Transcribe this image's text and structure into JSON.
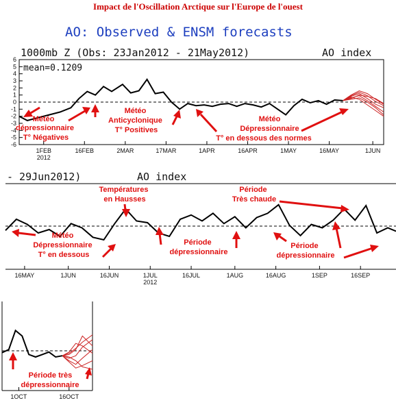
{
  "page": {
    "title": "Impact de l'Oscillation Arctique sur l'Europe de l'ouest"
  },
  "colors": {
    "observed": "#000000",
    "forecast": "#cc2222",
    "annotation": "#e01010",
    "heading_blue": "#1d3fbf"
  },
  "chart_data": [
    {
      "type": "line",
      "panel": "top",
      "title": "AO: Observed & ENSM forecasts",
      "subtitle": "1000mb Z (Obs: 23Jan2012 - 21May2012)",
      "right_label": "AO index",
      "mean_label": "mean=0.1209",
      "ylim": [
        -6,
        6
      ],
      "yticks": [
        "6",
        "5",
        "4",
        "3",
        "2",
        "1",
        "0",
        "-1",
        "-2",
        "-3",
        "-4",
        "-5",
        "-6"
      ],
      "xlim": [
        "2012-01-23",
        "2012-06-05"
      ],
      "xticks": [
        {
          "date": "2012-02-01",
          "label": "1FEB",
          "sub": "2012"
        },
        {
          "date": "2012-02-16",
          "label": "16FEB"
        },
        {
          "date": "2012-03-02",
          "label": "2MAR"
        },
        {
          "date": "2012-03-17",
          "label": "17MAR"
        },
        {
          "date": "2012-04-01",
          "label": "1APR"
        },
        {
          "date": "2012-04-16",
          "label": "16APR"
        },
        {
          "date": "2012-05-01",
          "label": "1MAY"
        },
        {
          "date": "2012-05-16",
          "label": "16MAY"
        },
        {
          "date": "2012-06-01",
          "label": "1JUN"
        }
      ],
      "series": [
        {
          "role": "observed",
          "x": [
            "2012-01-23",
            "2012-01-26",
            "2012-01-30",
            "2012-02-03",
            "2012-02-07",
            "2012-02-11",
            "2012-02-14",
            "2012-02-17",
            "2012-02-20",
            "2012-02-23",
            "2012-02-26",
            "2012-03-01",
            "2012-03-04",
            "2012-03-07",
            "2012-03-10",
            "2012-03-13",
            "2012-03-16",
            "2012-03-19",
            "2012-03-22",
            "2012-03-25",
            "2012-03-28",
            "2012-03-31",
            "2012-04-03",
            "2012-04-06",
            "2012-04-09",
            "2012-04-12",
            "2012-04-15",
            "2012-04-18",
            "2012-04-21",
            "2012-04-24",
            "2012-04-27",
            "2012-04-30",
            "2012-05-03",
            "2012-05-06",
            "2012-05-09",
            "2012-05-12",
            "2012-05-15",
            "2012-05-18",
            "2012-05-21"
          ],
          "y": [
            -2.0,
            -2.6,
            -2.2,
            -1.8,
            -1.4,
            -0.8,
            0.5,
            1.5,
            1.0,
            2.2,
            1.5,
            2.5,
            1.3,
            1.6,
            3.2,
            1.2,
            1.4,
            0.0,
            -1.0,
            -0.2,
            -0.5,
            -0.4,
            -0.6,
            -0.3,
            -0.2,
            -0.6,
            -0.2,
            -0.4,
            -0.7,
            -0.2,
            -1.0,
            -1.8,
            -0.5,
            0.4,
            -0.1,
            0.2,
            -0.3,
            0.3,
            0.2
          ]
        },
        {
          "role": "forecast",
          "x": [
            "2012-05-21",
            "2012-05-24",
            "2012-05-27",
            "2012-05-30",
            "2012-06-02",
            "2012-06-05"
          ],
          "members": [
            [
              0.2,
              1.0,
              1.6,
              1.2,
              0.4,
              -0.3
            ],
            [
              0.2,
              0.8,
              1.2,
              0.5,
              -0.3,
              -0.8
            ],
            [
              0.2,
              0.6,
              0.9,
              0.2,
              -0.6,
              -1.4
            ],
            [
              0.2,
              0.4,
              0.6,
              0.0,
              -0.8,
              -1.8
            ],
            [
              0.2,
              0.9,
              1.4,
              0.9,
              0.1,
              -0.5
            ],
            [
              0.2,
              0.5,
              1.0,
              0.8,
              0.5,
              -0.2
            ],
            [
              0.2,
              0.7,
              0.4,
              -0.4,
              -1.2,
              -2.0
            ]
          ]
        }
      ],
      "annotations": [
        {
          "lines": [
            "Météo",
            "dépressionnaire",
            "T° Négatives"
          ]
        },
        {
          "lines": [
            "Météo",
            "Anticyclonique",
            "T° Positives"
          ]
        },
        {
          "lines": [
            "Météo",
            "Dépressionnaire",
            "T° en dessous des normes"
          ]
        }
      ]
    },
    {
      "type": "line",
      "panel": "middle",
      "subtitle": "- 29Jun2012)",
      "right_label": "AO index",
      "xlim": [
        "2012-05-09",
        "2012-09-29"
      ],
      "ylim": [
        -6,
        6
      ],
      "xticks": [
        {
          "date": "2012-05-16",
          "label": "16MAY"
        },
        {
          "date": "2012-06-01",
          "label": "1JUN"
        },
        {
          "date": "2012-06-16",
          "label": "16JUN"
        },
        {
          "date": "2012-07-01",
          "label": "1JUL",
          "sub": "2012"
        },
        {
          "date": "2012-07-16",
          "label": "16JUL"
        },
        {
          "date": "2012-08-01",
          "label": "1AUG"
        },
        {
          "date": "2012-08-16",
          "label": "16AUG"
        },
        {
          "date": "2012-09-01",
          "label": "1SEP"
        },
        {
          "date": "2012-09-16",
          "label": "16SEP"
        }
      ],
      "series": [
        {
          "role": "observed",
          "x": [
            "2012-05-09",
            "2012-05-13",
            "2012-05-17",
            "2012-05-21",
            "2012-05-25",
            "2012-05-29",
            "2012-06-02",
            "2012-06-06",
            "2012-06-10",
            "2012-06-14",
            "2012-06-18",
            "2012-06-22",
            "2012-06-26",
            "2012-06-30",
            "2012-07-04",
            "2012-07-08",
            "2012-07-12",
            "2012-07-16",
            "2012-07-20",
            "2012-07-24",
            "2012-07-28",
            "2012-08-01",
            "2012-08-05",
            "2012-08-09",
            "2012-08-13",
            "2012-08-17",
            "2012-08-21",
            "2012-08-25",
            "2012-08-29",
            "2012-09-02",
            "2012-09-06",
            "2012-09-10",
            "2012-09-14",
            "2012-09-18",
            "2012-09-22",
            "2012-09-26",
            "2012-09-29"
          ],
          "y": [
            -0.5,
            0.8,
            0.2,
            -0.8,
            -0.4,
            -1.2,
            0.3,
            -0.2,
            -1.3,
            -1.6,
            0.3,
            2.0,
            0.6,
            0.4,
            -0.8,
            -1.2,
            0.8,
            1.3,
            0.6,
            1.5,
            0.3,
            1.1,
            -0.2,
            1.0,
            1.5,
            2.5,
            0.1,
            -1.1,
            0.2,
            -0.2,
            0.7,
            2.0,
            0.7,
            2.4,
            -0.8,
            -0.2,
            -0.6
          ]
        }
      ],
      "annotations": [
        {
          "lines": [
            "Températures",
            "en Hausses"
          ]
        },
        {
          "lines": [
            "Période",
            "Très chaude"
          ]
        },
        {
          "lines": [
            "Météo",
            "Dépressionnaire",
            "T° en dessous"
          ]
        },
        {
          "lines": [
            "Période",
            "dépressionnaire"
          ]
        },
        {
          "lines": [
            "Période",
            "dépressionnaire"
          ]
        }
      ]
    },
    {
      "type": "line",
      "panel": "bottom",
      "xlim": [
        "2012-09-26",
        "2012-10-23"
      ],
      "ylim": [
        -6,
        6
      ],
      "xticks": [
        {
          "date": "2012-10-01",
          "label": "1OCT"
        },
        {
          "date": "2012-10-16",
          "label": "16OCT"
        }
      ],
      "series": [
        {
          "role": "observed",
          "x": [
            "2012-09-26",
            "2012-09-28",
            "2012-09-30",
            "2012-10-02",
            "2012-10-04",
            "2012-10-06",
            "2012-10-08",
            "2012-10-10",
            "2012-10-12",
            "2012-10-14"
          ],
          "y": [
            -0.3,
            0.2,
            3.3,
            2.4,
            -0.6,
            -1.0,
            -0.6,
            -0.2,
            -1.0,
            -0.8
          ]
        },
        {
          "role": "forecast",
          "x": [
            "2012-10-14",
            "2012-10-16",
            "2012-10-18",
            "2012-10-20",
            "2012-10-23"
          ],
          "members": [
            [
              -0.8,
              -0.4,
              0.4,
              1.4,
              2.6
            ],
            [
              -0.8,
              -1.2,
              -0.8,
              0.6,
              1.8
            ],
            [
              -0.8,
              -0.6,
              0.2,
              2.4,
              0.8
            ],
            [
              -0.8,
              -1.6,
              -2.2,
              -1.2,
              0.2
            ],
            [
              -0.8,
              -1.8,
              -2.8,
              -2.4,
              -1.6
            ],
            [
              -0.8,
              -0.2,
              1.2,
              0.8,
              -0.4
            ],
            [
              -0.8,
              -1.0,
              -1.6,
              -2.6,
              -3.0
            ]
          ]
        }
      ],
      "annotations": [
        {
          "lines": [
            "Période très",
            "dépressionnaire"
          ]
        }
      ]
    }
  ]
}
